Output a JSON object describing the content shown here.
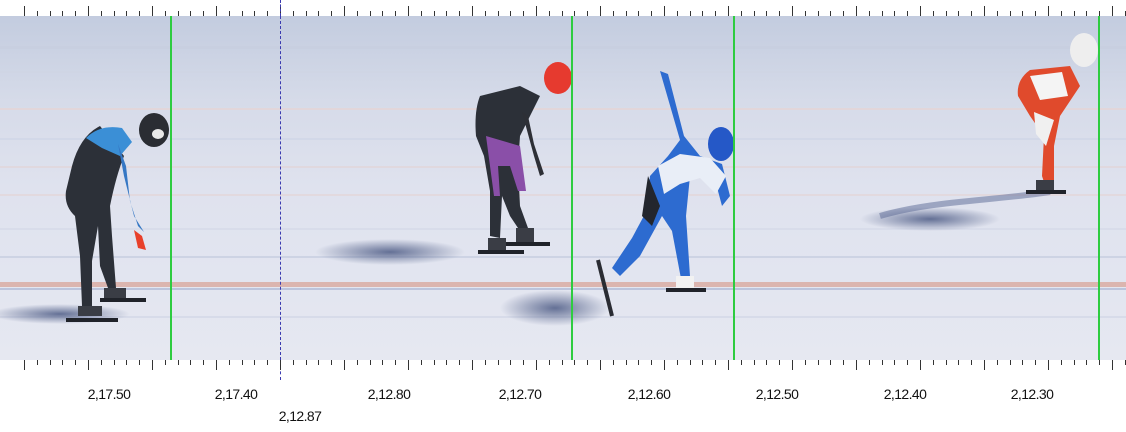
{
  "timeline": {
    "labels": [
      "2,17.50",
      "2,17.40",
      "2,12.80",
      "2,12.70",
      "2,12.60",
      "2,12.50",
      "2,12.40",
      "2,12.30"
    ],
    "split_label": "2,12.87"
  },
  "markers": {
    "finish_line_color": "#2ecc40",
    "split_line_color": "#3b3bb0"
  },
  "skaters": [
    {
      "helmet": "dark",
      "suit": "blue/black"
    },
    {
      "helmet": "red",
      "suit": "black/purple"
    },
    {
      "helmet": "blue",
      "suit": "blue/white"
    },
    {
      "helmet": "white",
      "suit": "red/white"
    }
  ]
}
